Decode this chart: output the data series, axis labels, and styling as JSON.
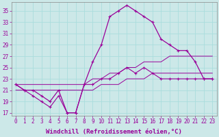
{
  "xlabel": "Windchill (Refroidissement éolien,°C)",
  "bg_color": "#cce8e8",
  "line_color": "#990099",
  "grid_color": "#aadddd",
  "x_hours": [
    0,
    1,
    2,
    3,
    4,
    5,
    6,
    7,
    8,
    9,
    10,
    11,
    12,
    13,
    14,
    15,
    16,
    17,
    18,
    19,
    20,
    21,
    22,
    23
  ],
  "temp": [
    22,
    21,
    21,
    20,
    19,
    21,
    17,
    17,
    22,
    26,
    29,
    34,
    35,
    36,
    35,
    34,
    33,
    30,
    29,
    28,
    28,
    26,
    23,
    23
  ],
  "windchill": [
    22,
    21,
    20,
    19,
    18,
    20,
    17,
    17,
    22,
    22,
    23,
    23,
    24,
    25,
    24,
    25,
    24,
    23,
    23,
    23,
    23,
    23,
    23,
    23
  ],
  "trend1": [
    22,
    22,
    22,
    22,
    22,
    22,
    22,
    22,
    22,
    23,
    23,
    24,
    24,
    25,
    25,
    26,
    26,
    26,
    27,
    27,
    27,
    27,
    27,
    27
  ],
  "trend2": [
    21,
    21,
    21,
    21,
    21,
    21,
    21,
    21,
    21,
    21,
    22,
    22,
    22,
    23,
    23,
    23,
    24,
    24,
    24,
    24,
    24,
    24,
    24,
    24
  ],
  "ylim_min": 16.5,
  "ylim_max": 36.5,
  "yticks": [
    17,
    19,
    21,
    23,
    25,
    27,
    29,
    31,
    33,
    35
  ],
  "xticks": [
    0,
    1,
    2,
    3,
    4,
    5,
    6,
    7,
    8,
    9,
    10,
    11,
    12,
    13,
    14,
    15,
    16,
    17,
    18,
    19,
    20,
    21,
    22,
    23
  ],
  "tick_fontsize": 5.5,
  "xlabel_fontsize": 6.5,
  "figsize": [
    3.2,
    2.0
  ],
  "dpi": 100
}
